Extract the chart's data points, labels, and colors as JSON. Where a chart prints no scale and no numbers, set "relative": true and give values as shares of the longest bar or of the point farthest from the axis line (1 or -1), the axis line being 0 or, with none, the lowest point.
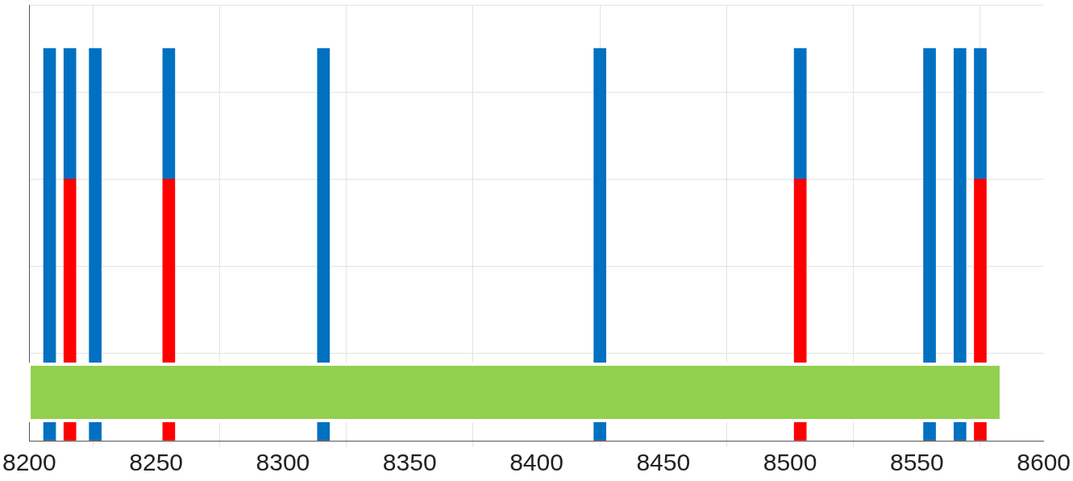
{
  "chart_data": {
    "type": "bar",
    "relative": true,
    "stacked": true,
    "grid": true,
    "legend": false,
    "x": [
      8208,
      8216,
      8226,
      8255,
      8316,
      8425,
      8504,
      8555,
      8567,
      8575
    ],
    "xlim": [
      8200,
      8600
    ],
    "xticks": [
      8200,
      8250,
      8300,
      8350,
      8400,
      8450,
      8500,
      8550,
      8600
    ],
    "series": [
      {
        "color": "#ff0000",
        "values": [
          0,
          0.667,
          0,
          0.667,
          0,
          0,
          0.667,
          0,
          0,
          0.667
        ]
      },
      {
        "color": "#0070c0",
        "values": [
          1,
          0.333,
          1,
          0.333,
          1,
          1,
          0.333,
          1,
          1,
          0.333
        ]
      }
    ]
  }
}
